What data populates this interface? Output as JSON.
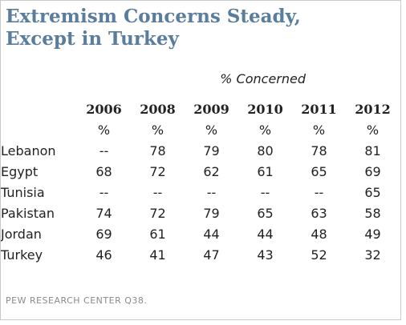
{
  "chart_data": {
    "type": "table",
    "title_line1": "Extremism Concerns Steady,",
    "title_line2": "Except in Turkey",
    "subtitle": "% Concerned",
    "years": [
      "2006",
      "2008",
      "2009",
      "2010",
      "2011",
      "2012"
    ],
    "unit_row": [
      "%",
      "%",
      "%",
      "%",
      "%",
      "%"
    ],
    "rows": [
      {
        "country": "Lebanon",
        "values": [
          "--",
          "78",
          "79",
          "80",
          "78",
          "81"
        ]
      },
      {
        "country": "Egypt",
        "values": [
          "68",
          "72",
          "62",
          "61",
          "65",
          "69"
        ]
      },
      {
        "country": "Tunisia",
        "values": [
          "--",
          "--",
          "--",
          "--",
          "--",
          "65"
        ]
      },
      {
        "country": "Pakistan",
        "values": [
          "74",
          "72",
          "79",
          "65",
          "63",
          "58"
        ]
      },
      {
        "country": "Jordan",
        "values": [
          "69",
          "61",
          "44",
          "44",
          "48",
          "49"
        ]
      },
      {
        "country": "Turkey",
        "values": [
          "46",
          "41",
          "47",
          "43",
          "52",
          "32"
        ]
      }
    ],
    "source": "PEW RESEARCH CENTER Q38."
  }
}
